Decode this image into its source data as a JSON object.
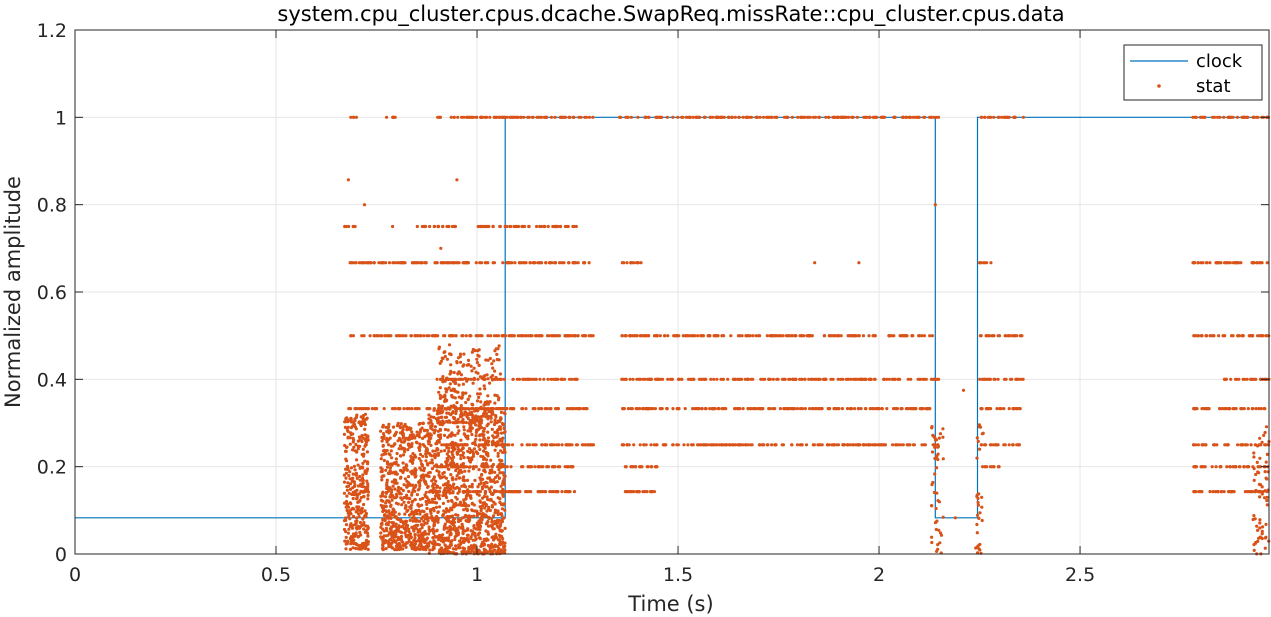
{
  "chart_data": {
    "type": "scatter",
    "title": "system.cpu_cluster.cpus.dcache.SwapReq.missRate::cpu_cluster.cpus.data",
    "xlabel": "Time (s)",
    "ylabel": "Normalized amplitude",
    "xlim": [
      0,
      2.97
    ],
    "ylim": [
      0,
      1.2
    ],
    "xticks": [
      0,
      0.5,
      1,
      1.5,
      2,
      2.5
    ],
    "xtick_labels": [
      "0",
      "0.5",
      "1",
      "1.5",
      "2",
      "2.5"
    ],
    "yticks": [
      0,
      0.2,
      0.4,
      0.6,
      0.8,
      1,
      1.2
    ],
    "ytick_labels": [
      "0",
      "0.2",
      "0.4",
      "0.6",
      "0.8",
      "1",
      "1.2"
    ],
    "grid": true,
    "legend_position": "top-right",
    "colors": {
      "clock": "#0072bd",
      "stat": "#d95319",
      "grid": "#e6e6e6",
      "axis": "#262626"
    },
    "series": [
      {
        "name": "clock",
        "style": "line",
        "x": [
          0,
          0.67,
          0.67,
          1.07,
          1.07,
          2.14,
          2.14,
          2.245,
          2.245,
          2.97
        ],
        "y": [
          0.083,
          0.083,
          0.083,
          0.083,
          1,
          1,
          0.083,
          0.083,
          1,
          1
        ]
      },
      {
        "name": "stat",
        "style": "markers",
        "levels": [
          1,
          0.857,
          0.8,
          0.75,
          0.667,
          0.6,
          0.5,
          0.429,
          0.4,
          0.375,
          0.333,
          0.286,
          0.25,
          0.2,
          0.167,
          0.143,
          0.125,
          0.1,
          0.083,
          0.0
        ],
        "bursts": [
          {
            "x_range": [
              0.67,
              0.73
            ],
            "y_range": [
              0.01,
              0.32
            ],
            "density": "dense"
          },
          {
            "x_range": [
              0.76,
              0.88
            ],
            "y_range": [
              0.01,
              0.3
            ],
            "density": "dense"
          },
          {
            "x_range": [
              0.88,
              1.07
            ],
            "y_range": [
              0.0,
              0.33
            ],
            "density": "dense"
          },
          {
            "x_range": [
              0.9,
              1.06
            ],
            "y_range": [
              0.3,
              0.48
            ],
            "density": "medium"
          },
          {
            "x_range": [
              2.13,
              2.16
            ],
            "y_range": [
              0.0,
              0.3
            ],
            "density": "medium"
          },
          {
            "x_range": [
              2.24,
              2.26
            ],
            "y_range": [
              0.0,
              0.3
            ],
            "density": "medium"
          },
          {
            "x_range": [
              2.93,
              2.97
            ],
            "y_range": [
              0.0,
              0.3
            ],
            "density": "medium"
          }
        ],
        "level_bands": [
          {
            "y": 1.0,
            "x_ranges": [
              [
                0.68,
                0.7
              ],
              [
                0.77,
                0.8
              ],
              [
                0.9,
                1.29
              ],
              [
                1.35,
                2.15
              ],
              [
                2.25,
                2.36
              ],
              [
                2.78,
                2.97
              ]
            ]
          },
          {
            "y": 0.667,
            "x_ranges": [
              [
                0.68,
                1.29
              ],
              [
                1.36,
                1.41
              ],
              [
                2.25,
                2.28
              ],
              [
                2.78,
                2.97
              ]
            ]
          },
          {
            "y": 0.5,
            "x_ranges": [
              [
                0.68,
                1.29
              ],
              [
                1.36,
                2.15
              ],
              [
                2.25,
                2.36
              ],
              [
                2.78,
                2.97
              ]
            ]
          },
          {
            "y": 0.333,
            "x_ranges": [
              [
                0.68,
                1.29
              ],
              [
                1.36,
                2.15
              ],
              [
                2.25,
                2.36
              ],
              [
                2.78,
                2.97
              ]
            ]
          },
          {
            "y": 0.25,
            "x_ranges": [
              [
                0.9,
                1.29
              ],
              [
                1.36,
                2.15
              ],
              [
                2.25,
                2.36
              ],
              [
                2.78,
                2.97
              ]
            ]
          },
          {
            "y": 0.2,
            "x_ranges": [
              [
                0.9,
                1.25
              ],
              [
                1.36,
                1.45
              ],
              [
                2.25,
                2.3
              ],
              [
                2.78,
                2.97
              ]
            ]
          },
          {
            "y": 0.143,
            "x_ranges": [
              [
                0.9,
                1.25
              ],
              [
                1.36,
                1.45
              ],
              [
                2.78,
                2.97
              ]
            ]
          },
          {
            "y": 0.4,
            "x_ranges": [
              [
                0.9,
                1.25
              ],
              [
                1.36,
                2.15
              ],
              [
                2.25,
                2.36
              ],
              [
                2.85,
                2.97
              ]
            ]
          },
          {
            "y": 0.75,
            "x_ranges": [
              [
                0.67,
                0.7
              ],
              [
                0.85,
                0.95
              ],
              [
                1.0,
                1.25
              ]
            ]
          }
        ]
      }
    ]
  }
}
